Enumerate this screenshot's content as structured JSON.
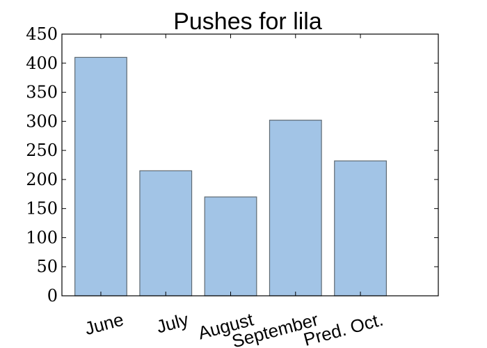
{
  "chart_data": {
    "type": "bar",
    "title": "Pushes for lila",
    "xlabel": "",
    "ylabel": "",
    "categories": [
      "June",
      "July",
      "August",
      "September",
      "Pred. Oct."
    ],
    "values": [
      410,
      215,
      170,
      302,
      232
    ],
    "ylim": [
      0,
      450
    ],
    "yticks": [
      0,
      50,
      100,
      150,
      200,
      250,
      300,
      350,
      400,
      450
    ],
    "grid": false,
    "colors": {
      "bar_fill": "#a2c4e6",
      "bar_edge": "#5f6a72"
    }
  }
}
